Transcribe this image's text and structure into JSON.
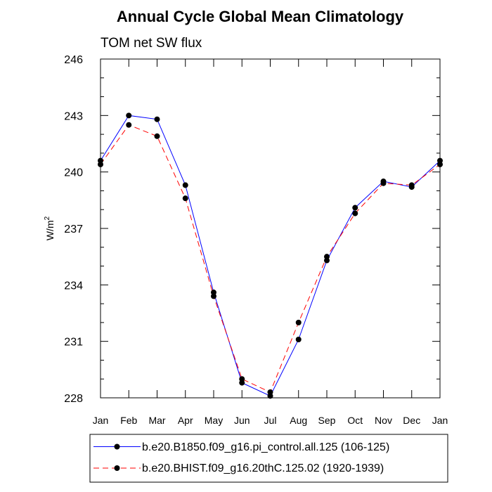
{
  "chart_data": {
    "type": "line",
    "title": "Annual Cycle Global Mean Climatology",
    "subtitle": "TOM net SW flux",
    "ylabel": "W/m",
    "ylabel_sup": "2",
    "xlabel": "",
    "categories": [
      "Jan",
      "Feb",
      "Mar",
      "Apr",
      "May",
      "Jun",
      "Jul",
      "Aug",
      "Sep",
      "Oct",
      "Nov",
      "Dec",
      "Jan"
    ],
    "ylim": [
      228,
      246
    ],
    "yticks": [
      228,
      231,
      234,
      237,
      240,
      243,
      246
    ],
    "grid": false,
    "legend_position": "bottom",
    "series": [
      {
        "name": "b.e20.B1850.f09_g16.pi_control.all.125 (106-125)",
        "color": "#0000ff",
        "line_style": "solid",
        "values": [
          240.6,
          243.0,
          242.8,
          239.3,
          233.6,
          228.8,
          228.1,
          231.1,
          235.3,
          238.1,
          239.5,
          239.2,
          240.6
        ]
      },
      {
        "name": "b.e20.BHIST.f09_g16.20thC.125.02 (1920-1939)",
        "color": "#ff0000",
        "line_style": "dashed",
        "values": [
          240.4,
          242.5,
          241.9,
          238.6,
          233.4,
          229.0,
          228.3,
          232.0,
          235.5,
          237.8,
          239.4,
          239.3,
          240.4
        ]
      }
    ]
  }
}
